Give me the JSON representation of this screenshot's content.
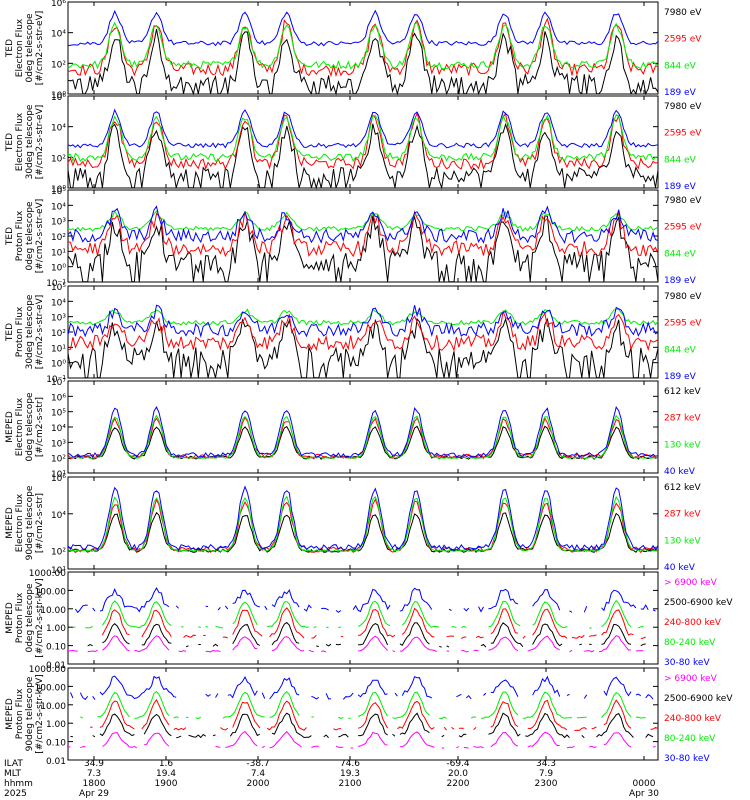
{
  "chart_data": [
    {
      "type": "line",
      "ylabel": [
        "TED",
        "Electron Flux",
        "0deg telescope",
        "[#/cm2-s-str-eV]"
      ],
      "yscale": "log",
      "ylim": [
        1,
        1000000
      ],
      "ticks": [
        {
          "v": 1,
          "label": "10⁰"
        },
        {
          "v": 100,
          "label": "10²"
        },
        {
          "v": 10000,
          "label": "10⁴"
        },
        {
          "v": 1000000,
          "label": "10⁶"
        }
      ],
      "series": [
        {
          "name": "7980 eV",
          "color": "#000000",
          "base": 5,
          "amp": 3,
          "noise": 1.2,
          "dropouts": true
        },
        {
          "name": "2595 eV",
          "color": "#ff0000",
          "base": 40,
          "amp": 3,
          "noise": 0.8
        },
        {
          "name": "844 eV",
          "color": "#00ee00",
          "base": 80,
          "amp": 2.6,
          "noise": 0.5
        },
        {
          "name": "189 eV",
          "color": "#0000ff",
          "base": 2000,
          "amp": 2.0,
          "noise": 0.3
        }
      ]
    },
    {
      "type": "line",
      "ylabel": [
        "TED",
        "Electron Flux",
        "30deg telescope",
        "[#/cm2-s-str-eV]"
      ],
      "yscale": "log",
      "ylim": [
        1,
        1000000
      ],
      "ticks": [
        {
          "v": 1,
          "label": "10⁰"
        },
        {
          "v": 100,
          "label": "10²"
        },
        {
          "v": 10000,
          "label": "10⁴"
        },
        {
          "v": 1000000,
          "label": "10⁶"
        }
      ],
      "series": [
        {
          "name": "7980 eV",
          "color": "#000000",
          "base": 8,
          "amp": 3,
          "noise": 1.0,
          "dropouts": true
        },
        {
          "name": "2595 eV",
          "color": "#ff0000",
          "base": 40,
          "amp": 3,
          "noise": 0.7
        },
        {
          "name": "844 eV",
          "color": "#00ee00",
          "base": 100,
          "amp": 2.6,
          "noise": 0.5
        },
        {
          "name": "189 eV",
          "color": "#0000ff",
          "base": 600,
          "amp": 2.2,
          "noise": 0.3
        }
      ]
    },
    {
      "type": "line",
      "ylabel": [
        "TED",
        "Proton Flux",
        "0deg telescope",
        "[#/cm2-s-str-eV]"
      ],
      "yscale": "log",
      "ylim": [
        0.1,
        100000
      ],
      "ticks": [
        {
          "v": 0.1,
          "label": "10⁻¹"
        },
        {
          "v": 1,
          "label": "10⁰"
        },
        {
          "v": 10,
          "label": "10¹"
        },
        {
          "v": 100,
          "label": "10²"
        },
        {
          "v": 1000,
          "label": "10³"
        },
        {
          "v": 10000,
          "label": "10⁴"
        },
        {
          "v": 100000,
          "label": "10⁵"
        }
      ],
      "series": [
        {
          "name": "7980 eV",
          "color": "#000000",
          "base": 2,
          "amp": 2.5,
          "noise": 1.4,
          "dropouts": true
        },
        {
          "name": "2595 eV",
          "color": "#ff0000",
          "base": 15,
          "amp": 2,
          "noise": 1.0
        },
        {
          "name": "844 eV",
          "color": "#00ee00",
          "base": 300,
          "amp": 1.0,
          "noise": 0.3
        },
        {
          "name": "189 eV",
          "color": "#0000ff",
          "base": 100,
          "amp": 1.5,
          "noise": 0.9
        }
      ]
    },
    {
      "type": "line",
      "ylabel": [
        "TED",
        "Proton Flux",
        "30deg telescope",
        "[#/cm2-s-str-eV]"
      ],
      "yscale": "log",
      "ylim": [
        0.1,
        100000
      ],
      "ticks": [
        {
          "v": 0.1,
          "label": "10⁻¹"
        },
        {
          "v": 1,
          "label": "10⁰"
        },
        {
          "v": 10,
          "label": "10¹"
        },
        {
          "v": 100,
          "label": "10²"
        },
        {
          "v": 1000,
          "label": "10³"
        },
        {
          "v": 10000,
          "label": "10⁴"
        },
        {
          "v": 100000,
          "label": "10⁵"
        }
      ],
      "series": [
        {
          "name": "7980 eV",
          "color": "#000000",
          "base": 2,
          "amp": 2.0,
          "noise": 1.4,
          "dropouts": true
        },
        {
          "name": "2595 eV",
          "color": "#ff0000",
          "base": 20,
          "amp": 1.6,
          "noise": 1.0
        },
        {
          "name": "844 eV",
          "color": "#00ee00",
          "base": 400,
          "amp": 0.8,
          "noise": 0.3
        },
        {
          "name": "189 eV",
          "color": "#0000ff",
          "base": 150,
          "amp": 1.2,
          "noise": 0.9
        }
      ]
    },
    {
      "type": "line",
      "ylabel": [
        "MEPED",
        "Electron Flux",
        "0deg telescope",
        "[#/cm2-s-str]"
      ],
      "yscale": "log",
      "ylim": [
        10,
        10000000
      ],
      "ticks": [
        {
          "v": 10,
          "label": "10¹"
        },
        {
          "v": 100,
          "label": "10²"
        },
        {
          "v": 1000,
          "label": "10³"
        },
        {
          "v": 10000,
          "label": "10⁴"
        },
        {
          "v": 100000,
          "label": "10⁵"
        },
        {
          "v": 1000000,
          "label": "10⁶"
        },
        {
          "v": 10000000,
          "label": "10⁷"
        }
      ],
      "series": [
        {
          "name": "612 keV",
          "color": "#000000",
          "base": 100,
          "amp": 2.0,
          "noise": 0.2
        },
        {
          "name": "287 keV",
          "color": "#ff0000",
          "base": 120,
          "amp": 2.4,
          "noise": 0.3
        },
        {
          "name": "130 keV",
          "color": "#00ee00",
          "base": 100,
          "amp": 2.7,
          "noise": 0.1
        },
        {
          "name": "40 keV",
          "color": "#0000ff",
          "base": 150,
          "amp": 3.0,
          "noise": 0.3
        }
      ]
    },
    {
      "type": "line",
      "ylabel": [
        "MEPED",
        "Electron Flux",
        "90deg telescope",
        "[#/cm2-s-str]"
      ],
      "yscale": "log",
      "ylim": [
        10,
        1000000
      ],
      "ticks": [
        {
          "v": 10,
          "label": "10¹"
        },
        {
          "v": 100,
          "label": "10²"
        },
        {
          "v": 10000,
          "label": "10⁴"
        },
        {
          "v": 1000000,
          "label": "10⁶"
        }
      ],
      "series": [
        {
          "name": "612 keV",
          "color": "#000000",
          "base": 100,
          "amp": 2.0,
          "noise": 0.2
        },
        {
          "name": "287 keV",
          "color": "#ff0000",
          "base": 110,
          "amp": 2.6,
          "noise": 0.3
        },
        {
          "name": "130 keV",
          "color": "#00ee00",
          "base": 100,
          "amp": 2.9,
          "noise": 0.1
        },
        {
          "name": "40 keV",
          "color": "#0000ff",
          "base": 150,
          "amp": 3.2,
          "noise": 0.3
        }
      ]
    },
    {
      "type": "line",
      "ylabel": [
        "MEPED",
        "Proton Flux",
        "0deg telescope",
        "[#/cm2-s-str-keV]"
      ],
      "yscale": "log",
      "ylim": [
        0.01,
        1000
      ],
      "ticks": [
        {
          "v": 0.01,
          "label": "0.01"
        },
        {
          "v": 0.1,
          "label": "0.10"
        },
        {
          "v": 1,
          "label": "1.00"
        },
        {
          "v": 10,
          "label": "10.00"
        },
        {
          "v": 100,
          "label": "100.00"
        },
        {
          "v": 1000,
          "label": "1000.00"
        }
      ],
      "series": [
        {
          "name": "> 6900 keV",
          "color": "#ff00ff",
          "base": 0.05,
          "amp": 0.8,
          "noise": 0.1,
          "sparse": true
        },
        {
          "name": "2500-6900 keV",
          "color": "#000000",
          "base": 0.1,
          "amp": 1.2,
          "noise": 0.2,
          "sparse": true
        },
        {
          "name": "240-800 keV",
          "color": "#ff0000",
          "base": 0.3,
          "amp": 1.5,
          "noise": 0.2,
          "sparse": true
        },
        {
          "name": "80-240 keV",
          "color": "#00ee00",
          "base": 1.0,
          "amp": 1.4,
          "noise": 0.1,
          "sparse": true
        },
        {
          "name": "30-80 keV",
          "color": "#0000ff",
          "base": 10,
          "amp": 1.0,
          "noise": 0.4,
          "sparse": true
        }
      ]
    },
    {
      "type": "line",
      "ylabel": [
        "MEPED",
        "Proton Flux",
        "90deg telescope",
        "[#/cm2-s-str-keV]"
      ],
      "yscale": "log",
      "ylim": [
        0.01,
        1000
      ],
      "ticks": [
        {
          "v": 0.01,
          "label": "0.01"
        },
        {
          "v": 0.1,
          "label": "0.10"
        },
        {
          "v": 1,
          "label": "1.00"
        },
        {
          "v": 10,
          "label": "10.00"
        },
        {
          "v": 100,
          "label": "100.00"
        },
        {
          "v": 1000,
          "label": "1000.00"
        }
      ],
      "series": [
        {
          "name": "> 6900 keV",
          "color": "#ff00ff",
          "base": 0.05,
          "amp": 0.8,
          "noise": 0.1,
          "sparse": true
        },
        {
          "name": "2500-6900 keV",
          "color": "#000000",
          "base": 0.2,
          "amp": 1.2,
          "noise": 0.2,
          "sparse": true
        },
        {
          "name": "240-800 keV",
          "color": "#ff0000",
          "base": 0.5,
          "amp": 1.5,
          "noise": 0.2,
          "sparse": true
        },
        {
          "name": "80-240 keV",
          "color": "#00ee00",
          "base": 2.0,
          "amp": 1.4,
          "noise": 0.1,
          "sparse": true
        },
        {
          "name": "30-80 keV",
          "color": "#0000ff",
          "base": 30,
          "amp": 1.0,
          "noise": 0.4,
          "sparse": true
        }
      ]
    }
  ],
  "time_axis": {
    "row_labels": [
      "ILAT",
      "MLT",
      "hhmm",
      "2025"
    ],
    "hour_ticks": [
      "1800",
      "1900",
      "2000",
      "2100",
      "2200",
      "2300",
      "0000"
    ],
    "columns": [
      {
        "ilat": "34.9",
        "mlt": "7.3",
        "hhmm": "1800",
        "date": "Apr 29"
      },
      {
        "ilat": "1.6",
        "mlt": "19.4",
        "hhmm": "1900",
        "date": ""
      },
      {
        "ilat": "-38.7",
        "mlt": "7.4",
        "hhmm": "2000",
        "date": ""
      },
      {
        "ilat": "74.6",
        "mlt": "19.3",
        "hhmm": "2100",
        "date": ""
      },
      {
        "ilat": "-69.4",
        "mlt": "20.0",
        "hhmm": "2200",
        "date": ""
      },
      {
        "ilat": "34.3",
        "mlt": "7.9",
        "hhmm": "2300",
        "date": ""
      },
      {
        "ilat": "",
        "mlt": "",
        "hhmm": "0000",
        "date": "Apr 30"
      }
    ]
  }
}
